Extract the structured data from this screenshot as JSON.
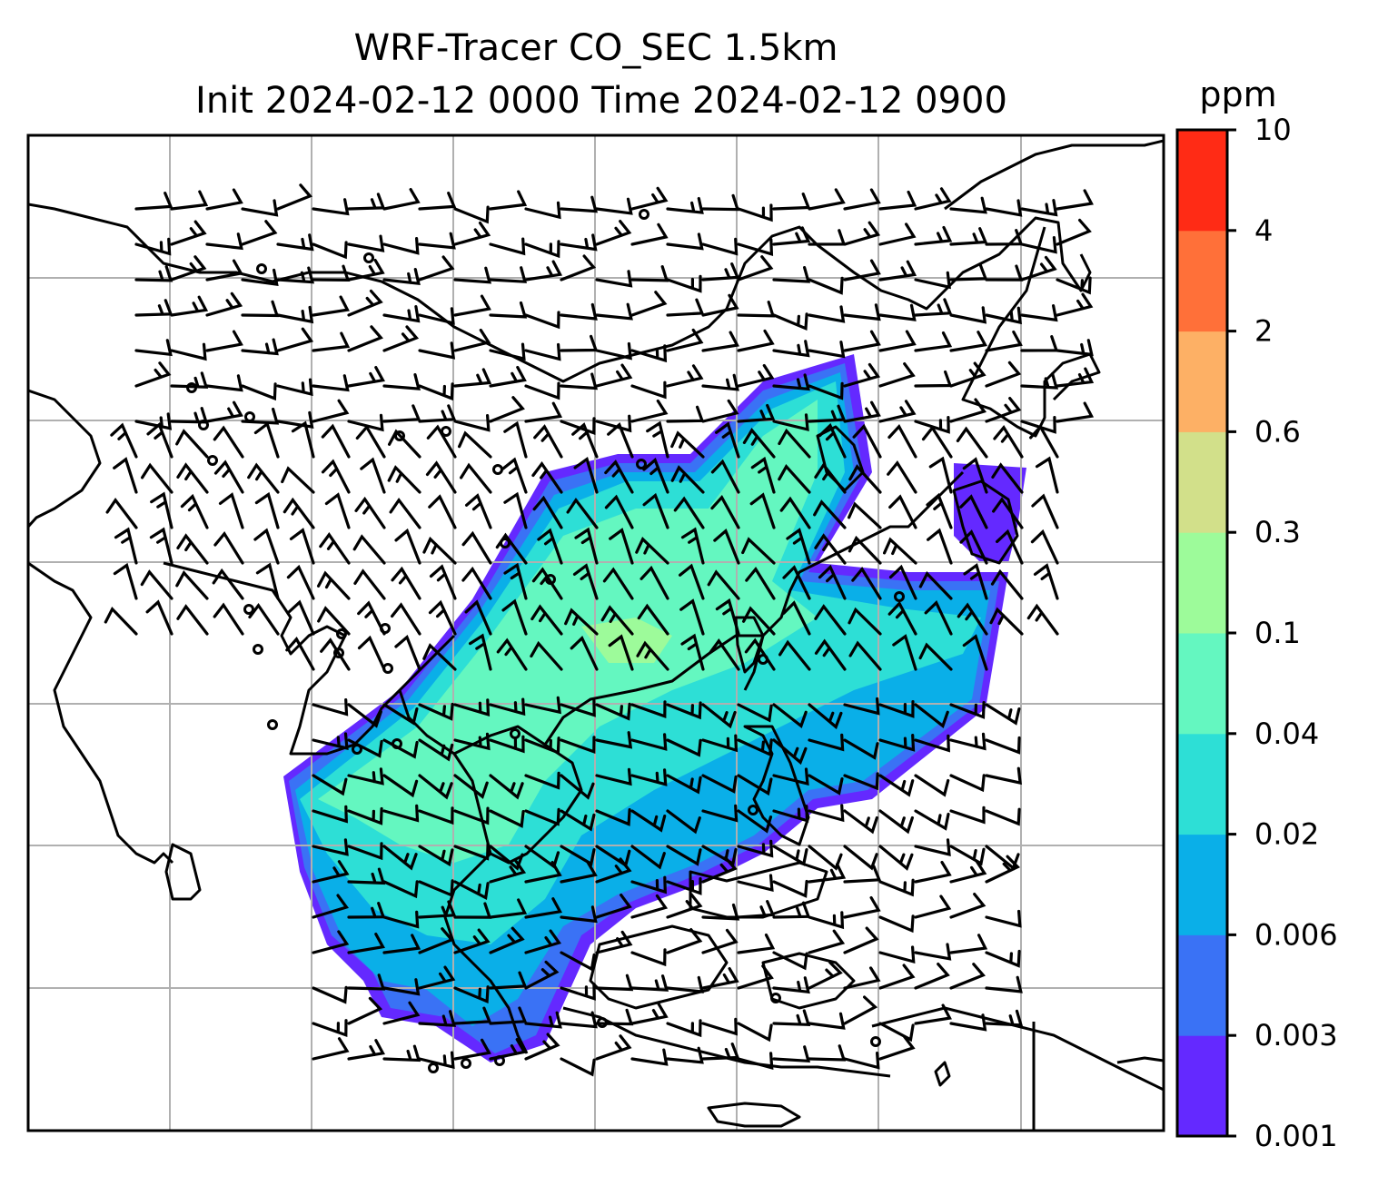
{
  "title": {
    "line1": "WRF-Tracer CO_SEC 1.5km",
    "line2": "Init 2024-02-12 0000 Time 2024-02-12 0900"
  },
  "colorbar": {
    "unit": "ppm",
    "ticks": [
      "0.001",
      "0.003",
      "0.006",
      "0.02",
      "0.04",
      "0.1",
      "0.3",
      "0.6",
      "2",
      "4",
      "10"
    ],
    "colors": [
      "#6429ff",
      "#3a72f5",
      "#0aafe8",
      "#2ddfd6",
      "#64f7c0",
      "#9dfb9a",
      "#d2e08a",
      "#fdb065",
      "#ff7039",
      "#ff2b15"
    ]
  },
  "map": {
    "grid": "on",
    "features": [
      "coastlines",
      "wind-barbs",
      "tracer-concentration"
    ]
  }
}
